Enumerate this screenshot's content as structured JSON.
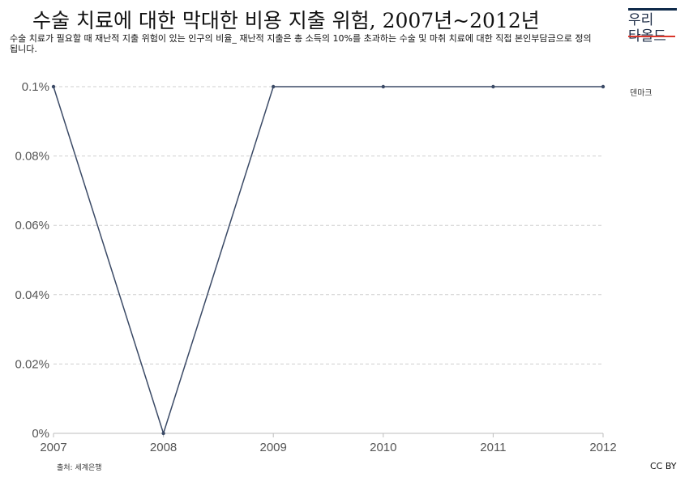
{
  "title": "수술 치료에 대한 막대한 비용 지출 위험, 2007년~2012년",
  "subtitle": "수술 치료가 필요할 때 재난적 지출 위험이 있는 인구의 비율_ 재난적 지출은 총 소득의 10%를 초과하는 수술 및 마취 치료에 대한 직접 본인부담금으로 정의됩니다.",
  "logo": {
    "line1": "우리",
    "line2": "타올드"
  },
  "source": "출처: 세계은행",
  "license": "CC BY",
  "colors": {
    "line": "#3b4a66",
    "grid": "#cfcfcf",
    "axis": "#bdbdbd"
  },
  "chart_data": {
    "type": "line",
    "x": [
      2007,
      2008,
      2009,
      2010,
      2011,
      2012
    ],
    "series": [
      {
        "name": "덴마크",
        "values": [
          0.1,
          0,
          0.1,
          0.1,
          0.1,
          0.1
        ]
      }
    ],
    "y_ticks": [
      "0%",
      "0.02%",
      "0.04%",
      "0.06%",
      "0.08%",
      "0.1%"
    ],
    "x_ticks": [
      "2007",
      "2008",
      "2009",
      "2010",
      "2011",
      "2012"
    ],
    "ylim": [
      0,
      0.1
    ],
    "grid": true,
    "legend": "right"
  }
}
